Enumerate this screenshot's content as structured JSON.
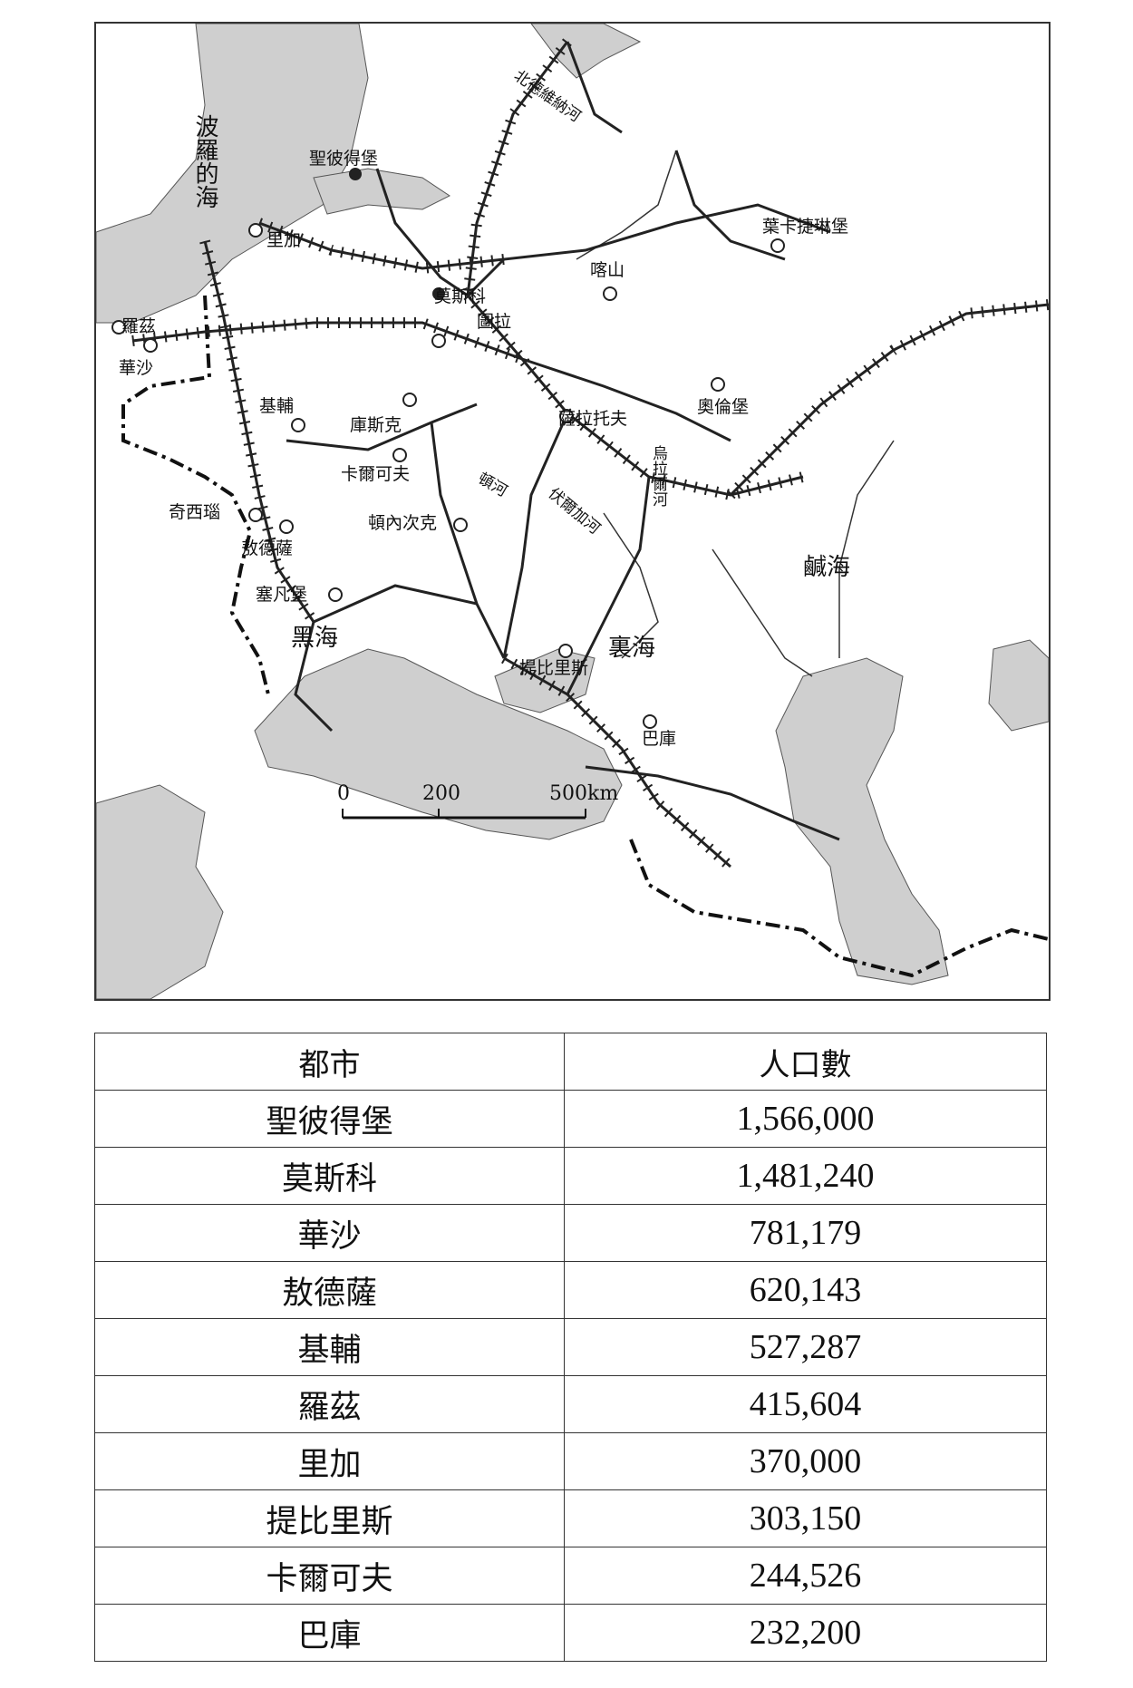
{
  "map": {
    "seas": {
      "baltic": "波羅的海",
      "black": "黑海",
      "caspian": "裏海",
      "aral": "鹹海"
    },
    "rivers": {
      "north_dvina": "北德維納河",
      "don": "頓河",
      "volga": "伏爾加河",
      "ural": "烏拉爾河"
    },
    "cities": {
      "st_petersburg": "聖彼得堡",
      "riga": "里加",
      "moscow": "莫斯科",
      "tula": "圖拉",
      "kazan": "喀山",
      "yekaterinburg": "葉卡捷琳堡",
      "lodz": "羅茲",
      "warsaw": "華沙",
      "kiev": "基輔",
      "kursk": "庫斯克",
      "saratov": "薩拉托夫",
      "orenburg": "奧倫堡",
      "kharkov": "卡爾可夫",
      "chisinau": "奇西瑙",
      "odessa": "敖德薩",
      "donetsk": "頓內次克",
      "sevastopol": "塞凡堡",
      "tbilisi": "提比里斯",
      "baku": "巴庫"
    },
    "scale": {
      "zero": "0",
      "mid": "200",
      "end": "500km"
    }
  },
  "table": {
    "headers": {
      "city": "都市",
      "population": "人口數"
    },
    "rows": [
      {
        "city": "聖彼得堡",
        "population": "1,566,000"
      },
      {
        "city": "莫斯科",
        "population": "1,481,240"
      },
      {
        "city": "華沙",
        "population": "781,179"
      },
      {
        "city": "敖德薩",
        "population": "620,143"
      },
      {
        "city": "基輔",
        "population": "527,287"
      },
      {
        "city": "羅茲",
        "population": "415,604"
      },
      {
        "city": "里加",
        "population": "370,000"
      },
      {
        "city": "提比里斯",
        "population": "303,150"
      },
      {
        "city": "卡爾可夫",
        "population": "244,526"
      },
      {
        "city": "巴庫",
        "population": "232,200"
      }
    ]
  }
}
